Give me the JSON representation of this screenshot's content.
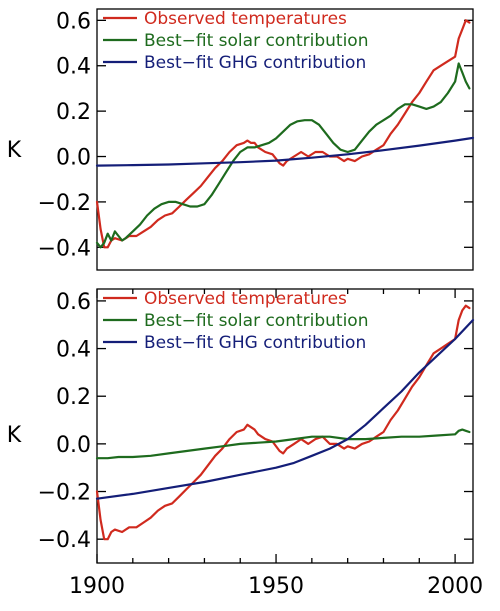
{
  "chart_data": [
    {
      "type": "line",
      "title": "",
      "xlabel": "",
      "ylabel": "K",
      "xlim": [
        1900,
        2005
      ],
      "ylim": [
        -0.5,
        0.65
      ],
      "yticks": [
        -0.4,
        -0.2,
        0.0,
        0.2,
        0.4,
        0.6
      ],
      "ytick_labels": [
        "−0.4",
        "−0.2",
        "0.0",
        "0.2",
        "0.4",
        "0.6"
      ],
      "grid": false,
      "legend_position": "top-left",
      "series": [
        {
          "name": "Observed temperatures",
          "color": "#d02a1e",
          "x": [
            1900,
            1901,
            1902,
            1903,
            1904,
            1905,
            1907,
            1909,
            1911,
            1913,
            1915,
            1917,
            1919,
            1921,
            1923,
            1925,
            1927,
            1929,
            1931,
            1933,
            1935,
            1937,
            1939,
            1941,
            1942,
            1943,
            1944,
            1945,
            1947,
            1949,
            1951,
            1952,
            1953,
            1955,
            1957,
            1959,
            1961,
            1963,
            1965,
            1967,
            1969,
            1970,
            1972,
            1974,
            1976,
            1978,
            1980,
            1982,
            1984,
            1986,
            1988,
            1990,
            1992,
            1994,
            1996,
            1998,
            2000,
            2001,
            2002,
            2003,
            2004
          ],
          "y": [
            -0.2,
            -0.32,
            -0.4,
            -0.4,
            -0.37,
            -0.36,
            -0.37,
            -0.35,
            -0.35,
            -0.33,
            -0.31,
            -0.28,
            -0.26,
            -0.25,
            -0.22,
            -0.19,
            -0.16,
            -0.13,
            -0.09,
            -0.05,
            -0.02,
            0.02,
            0.05,
            0.06,
            0.07,
            0.06,
            0.06,
            0.04,
            0.02,
            0.01,
            -0.03,
            -0.04,
            -0.02,
            0.0,
            0.02,
            0.0,
            0.02,
            0.02,
            0.0,
            0.0,
            -0.02,
            -0.01,
            -0.02,
            0.0,
            0.01,
            0.03,
            0.05,
            0.1,
            0.14,
            0.19,
            0.24,
            0.28,
            0.33,
            0.38,
            0.4,
            0.42,
            0.44,
            0.52,
            0.56,
            0.6,
            0.59
          ]
        },
        {
          "name": "Best−fit solar contribution",
          "color": "#1e6b1e",
          "x": [
            1900,
            1901,
            1902,
            1903,
            1904,
            1905,
            1906,
            1907,
            1908,
            1910,
            1912,
            1914,
            1916,
            1918,
            1920,
            1922,
            1924,
            1926,
            1928,
            1930,
            1932,
            1934,
            1936,
            1938,
            1940,
            1942,
            1944,
            1946,
            1948,
            1950,
            1952,
            1954,
            1956,
            1958,
            1960,
            1962,
            1964,
            1966,
            1968,
            1970,
            1972,
            1974,
            1976,
            1978,
            1980,
            1982,
            1984,
            1986,
            1988,
            1990,
            1992,
            1994,
            1996,
            1998,
            2000,
            2001,
            2002,
            2003,
            2004
          ],
          "y": [
            -0.38,
            -0.4,
            -0.38,
            -0.34,
            -0.37,
            -0.33,
            -0.35,
            -0.37,
            -0.36,
            -0.33,
            -0.3,
            -0.26,
            -0.23,
            -0.21,
            -0.2,
            -0.2,
            -0.21,
            -0.22,
            -0.22,
            -0.21,
            -0.17,
            -0.12,
            -0.07,
            -0.02,
            0.02,
            0.04,
            0.04,
            0.05,
            0.06,
            0.08,
            0.11,
            0.14,
            0.155,
            0.16,
            0.16,
            0.14,
            0.1,
            0.06,
            0.03,
            0.02,
            0.03,
            0.07,
            0.11,
            0.14,
            0.16,
            0.18,
            0.21,
            0.23,
            0.23,
            0.22,
            0.21,
            0.22,
            0.24,
            0.28,
            0.33,
            0.41,
            0.37,
            0.33,
            0.3
          ]
        },
        {
          "name": "Best−fit GHG contribution",
          "color": "#141e78",
          "x": [
            1900,
            1910,
            1920,
            1930,
            1940,
            1950,
            1960,
            1970,
            1980,
            1990,
            2000,
            2005
          ],
          "y": [
            -0.04,
            -0.038,
            -0.035,
            -0.03,
            -0.025,
            -0.018,
            -0.005,
            0.01,
            0.028,
            0.048,
            0.07,
            0.082
          ]
        }
      ]
    },
    {
      "type": "line",
      "title": "",
      "xlabel": "",
      "ylabel": "K",
      "xlim": [
        1900,
        2005
      ],
      "ylim": [
        -0.5,
        0.65
      ],
      "yticks": [
        -0.4,
        -0.2,
        0.0,
        0.2,
        0.4,
        0.6
      ],
      "ytick_labels": [
        "−0.4",
        "−0.2",
        "0.0",
        "0.2",
        "0.4",
        "0.6"
      ],
      "xticks": [
        1900,
        1950,
        2000
      ],
      "xtick_labels": [
        "1900",
        "1950",
        "2000"
      ],
      "grid": false,
      "legend_position": "top-left",
      "series": [
        {
          "name": "Observed temperatures",
          "color": "#d02a1e",
          "x": [
            1900,
            1901,
            1902,
            1903,
            1904,
            1905,
            1907,
            1909,
            1911,
            1913,
            1915,
            1917,
            1919,
            1921,
            1923,
            1925,
            1927,
            1929,
            1931,
            1933,
            1935,
            1937,
            1939,
            1941,
            1942,
            1943,
            1944,
            1945,
            1947,
            1949,
            1951,
            1952,
            1953,
            1955,
            1957,
            1959,
            1961,
            1963,
            1965,
            1967,
            1969,
            1970,
            1972,
            1974,
            1976,
            1978,
            1980,
            1982,
            1984,
            1986,
            1988,
            1990,
            1992,
            1994,
            1996,
            1998,
            2000,
            2001,
            2002,
            2003,
            2004
          ],
          "y": [
            -0.2,
            -0.32,
            -0.4,
            -0.4,
            -0.37,
            -0.36,
            -0.37,
            -0.35,
            -0.35,
            -0.33,
            -0.31,
            -0.28,
            -0.26,
            -0.25,
            -0.22,
            -0.19,
            -0.16,
            -0.13,
            -0.09,
            -0.05,
            -0.02,
            0.02,
            0.05,
            0.06,
            0.08,
            0.07,
            0.06,
            0.04,
            0.02,
            0.01,
            -0.03,
            -0.04,
            -0.02,
            0.0,
            0.02,
            0.0,
            0.02,
            0.03,
            0.0,
            0.0,
            -0.02,
            -0.01,
            -0.02,
            0.0,
            0.01,
            0.03,
            0.05,
            0.1,
            0.14,
            0.19,
            0.24,
            0.28,
            0.33,
            0.38,
            0.4,
            0.42,
            0.44,
            0.52,
            0.56,
            0.58,
            0.57
          ]
        },
        {
          "name": "Best−fit solar contribution",
          "color": "#1e6b1e",
          "x": [
            1900,
            1903,
            1906,
            1910,
            1915,
            1920,
            1925,
            1930,
            1935,
            1940,
            1945,
            1950,
            1955,
            1960,
            1965,
            1970,
            1975,
            1980,
            1985,
            1990,
            1995,
            2000,
            2001,
            2002,
            2003,
            2004
          ],
          "y": [
            -0.06,
            -0.06,
            -0.055,
            -0.055,
            -0.05,
            -0.04,
            -0.03,
            -0.02,
            -0.01,
            0.0,
            0.005,
            0.01,
            0.02,
            0.03,
            0.03,
            0.02,
            0.02,
            0.025,
            0.03,
            0.03,
            0.035,
            0.04,
            0.055,
            0.06,
            0.055,
            0.05
          ]
        },
        {
          "name": "Best−fit GHG contribution",
          "color": "#141e78",
          "x": [
            1900,
            1910,
            1920,
            1930,
            1940,
            1950,
            1955,
            1960,
            1965,
            1970,
            1975,
            1980,
            1985,
            1990,
            1995,
            2000,
            2005
          ],
          "y": [
            -0.23,
            -0.21,
            -0.185,
            -0.16,
            -0.13,
            -0.1,
            -0.08,
            -0.05,
            -0.02,
            0.02,
            0.08,
            0.15,
            0.22,
            0.3,
            0.37,
            0.44,
            0.52
          ]
        }
      ]
    }
  ]
}
